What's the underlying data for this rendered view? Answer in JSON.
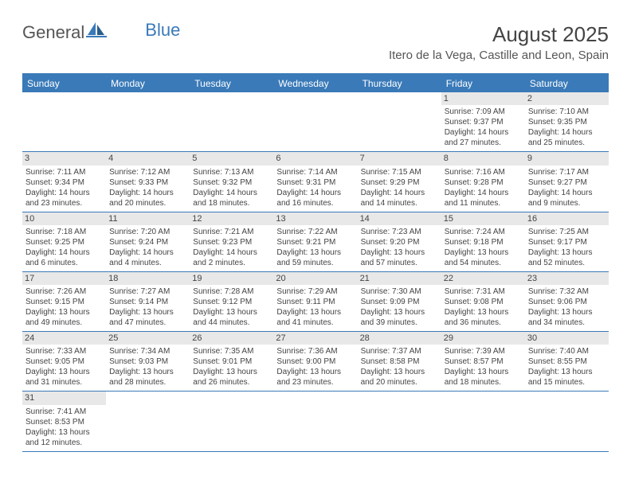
{
  "logo": {
    "part1": "General",
    "part2": "Blue"
  },
  "title": "August 2025",
  "location": "Itero de la Vega, Castille and Leon, Spain",
  "colors": {
    "brand": "#3a7ab8",
    "text": "#444444",
    "daynum_bg": "#e8e8e8",
    "bg": "#ffffff"
  },
  "weekdays": [
    "Sunday",
    "Monday",
    "Tuesday",
    "Wednesday",
    "Thursday",
    "Friday",
    "Saturday"
  ],
  "weeks": [
    [
      null,
      null,
      null,
      null,
      null,
      {
        "n": "1",
        "sr": "7:09 AM",
        "ss": "9:37 PM",
        "dl": "14 hours and 27 minutes."
      },
      {
        "n": "2",
        "sr": "7:10 AM",
        "ss": "9:35 PM",
        "dl": "14 hours and 25 minutes."
      }
    ],
    [
      {
        "n": "3",
        "sr": "7:11 AM",
        "ss": "9:34 PM",
        "dl": "14 hours and 23 minutes."
      },
      {
        "n": "4",
        "sr": "7:12 AM",
        "ss": "9:33 PM",
        "dl": "14 hours and 20 minutes."
      },
      {
        "n": "5",
        "sr": "7:13 AM",
        "ss": "9:32 PM",
        "dl": "14 hours and 18 minutes."
      },
      {
        "n": "6",
        "sr": "7:14 AM",
        "ss": "9:31 PM",
        "dl": "14 hours and 16 minutes."
      },
      {
        "n": "7",
        "sr": "7:15 AM",
        "ss": "9:29 PM",
        "dl": "14 hours and 14 minutes."
      },
      {
        "n": "8",
        "sr": "7:16 AM",
        "ss": "9:28 PM",
        "dl": "14 hours and 11 minutes."
      },
      {
        "n": "9",
        "sr": "7:17 AM",
        "ss": "9:27 PM",
        "dl": "14 hours and 9 minutes."
      }
    ],
    [
      {
        "n": "10",
        "sr": "7:18 AM",
        "ss": "9:25 PM",
        "dl": "14 hours and 6 minutes."
      },
      {
        "n": "11",
        "sr": "7:20 AM",
        "ss": "9:24 PM",
        "dl": "14 hours and 4 minutes."
      },
      {
        "n": "12",
        "sr": "7:21 AM",
        "ss": "9:23 PM",
        "dl": "14 hours and 2 minutes."
      },
      {
        "n": "13",
        "sr": "7:22 AM",
        "ss": "9:21 PM",
        "dl": "13 hours and 59 minutes."
      },
      {
        "n": "14",
        "sr": "7:23 AM",
        "ss": "9:20 PM",
        "dl": "13 hours and 57 minutes."
      },
      {
        "n": "15",
        "sr": "7:24 AM",
        "ss": "9:18 PM",
        "dl": "13 hours and 54 minutes."
      },
      {
        "n": "16",
        "sr": "7:25 AM",
        "ss": "9:17 PM",
        "dl": "13 hours and 52 minutes."
      }
    ],
    [
      {
        "n": "17",
        "sr": "7:26 AM",
        "ss": "9:15 PM",
        "dl": "13 hours and 49 minutes."
      },
      {
        "n": "18",
        "sr": "7:27 AM",
        "ss": "9:14 PM",
        "dl": "13 hours and 47 minutes."
      },
      {
        "n": "19",
        "sr": "7:28 AM",
        "ss": "9:12 PM",
        "dl": "13 hours and 44 minutes."
      },
      {
        "n": "20",
        "sr": "7:29 AM",
        "ss": "9:11 PM",
        "dl": "13 hours and 41 minutes."
      },
      {
        "n": "21",
        "sr": "7:30 AM",
        "ss": "9:09 PM",
        "dl": "13 hours and 39 minutes."
      },
      {
        "n": "22",
        "sr": "7:31 AM",
        "ss": "9:08 PM",
        "dl": "13 hours and 36 minutes."
      },
      {
        "n": "23",
        "sr": "7:32 AM",
        "ss": "9:06 PM",
        "dl": "13 hours and 34 minutes."
      }
    ],
    [
      {
        "n": "24",
        "sr": "7:33 AM",
        "ss": "9:05 PM",
        "dl": "13 hours and 31 minutes."
      },
      {
        "n": "25",
        "sr": "7:34 AM",
        "ss": "9:03 PM",
        "dl": "13 hours and 28 minutes."
      },
      {
        "n": "26",
        "sr": "7:35 AM",
        "ss": "9:01 PM",
        "dl": "13 hours and 26 minutes."
      },
      {
        "n": "27",
        "sr": "7:36 AM",
        "ss": "9:00 PM",
        "dl": "13 hours and 23 minutes."
      },
      {
        "n": "28",
        "sr": "7:37 AM",
        "ss": "8:58 PM",
        "dl": "13 hours and 20 minutes."
      },
      {
        "n": "29",
        "sr": "7:39 AM",
        "ss": "8:57 PM",
        "dl": "13 hours and 18 minutes."
      },
      {
        "n": "30",
        "sr": "7:40 AM",
        "ss": "8:55 PM",
        "dl": "13 hours and 15 minutes."
      }
    ],
    [
      {
        "n": "31",
        "sr": "7:41 AM",
        "ss": "8:53 PM",
        "dl": "13 hours and 12 minutes."
      },
      null,
      null,
      null,
      null,
      null,
      null
    ]
  ],
  "labels": {
    "sunrise": "Sunrise:",
    "sunset": "Sunset:",
    "daylight": "Daylight:"
  }
}
